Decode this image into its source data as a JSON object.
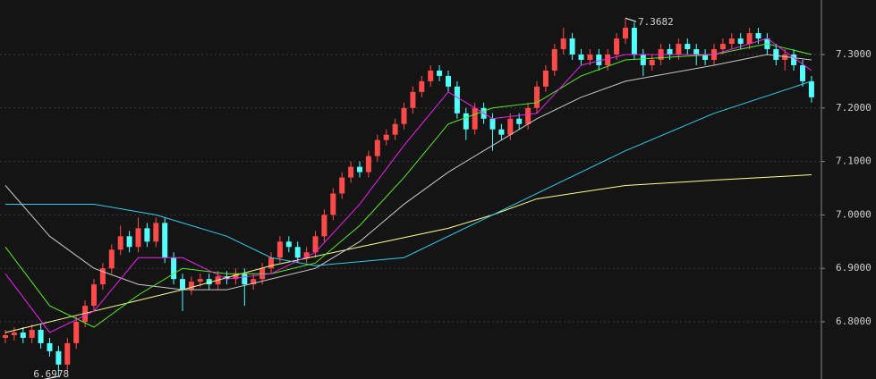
{
  "chart_data": {
    "type": "candlestick",
    "up_color": "#ff4a4a",
    "down_color": "#54ffff",
    "ylim": [
      6.693,
      7.402
    ],
    "yticks": [
      {
        "value": 6.8,
        "label": "6.8000"
      },
      {
        "value": 6.9,
        "label": "6.9000"
      },
      {
        "value": 7.0,
        "label": "7.0000"
      },
      {
        "value": 7.1,
        "label": "7.1000"
      },
      {
        "value": 7.2,
        "label": "7.2000"
      },
      {
        "value": 7.3,
        "label": "7.3000"
      }
    ],
    "grid": true,
    "candles": {
      "open": [
        6.77,
        6.775,
        6.78,
        6.77,
        6.785,
        6.76,
        6.745,
        6.72,
        6.76,
        6.8,
        6.83,
        6.87,
        6.9,
        6.935,
        6.96,
        6.94,
        6.975,
        6.95,
        6.985,
        6.92,
        6.88,
        6.86,
        6.875,
        6.88,
        6.87,
        6.885,
        6.88,
        6.89,
        6.87,
        6.88,
        6.9,
        6.92,
        6.95,
        6.94,
        6.92,
        6.93,
        6.96,
        7.0,
        7.04,
        7.07,
        7.09,
        7.08,
        7.11,
        7.14,
        7.15,
        7.17,
        7.2,
        7.23,
        7.25,
        7.27,
        7.26,
        7.24,
        7.19,
        7.16,
        7.2,
        7.18,
        7.16,
        7.15,
        7.18,
        7.17,
        7.2,
        7.24,
        7.27,
        7.31,
        7.33,
        7.3,
        7.29,
        7.3,
        7.28,
        7.3,
        7.33,
        7.35,
        7.3,
        7.28,
        7.29,
        7.31,
        7.3,
        7.32,
        7.31,
        7.3,
        7.29,
        7.31,
        7.32,
        7.33,
        7.32,
        7.34,
        7.33,
        7.31,
        7.29,
        7.3,
        7.28,
        7.25
      ],
      "high": [
        6.785,
        6.79,
        6.79,
        6.795,
        6.795,
        6.77,
        6.755,
        6.77,
        6.81,
        6.84,
        6.88,
        6.91,
        6.945,
        6.98,
        6.97,
        6.995,
        6.985,
        6.995,
        6.995,
        6.93,
        6.89,
        6.885,
        6.89,
        6.89,
        6.895,
        6.895,
        6.9,
        6.9,
        6.89,
        6.91,
        6.93,
        6.96,
        6.96,
        6.95,
        6.94,
        6.97,
        7.01,
        7.05,
        7.08,
        7.1,
        7.1,
        7.12,
        7.15,
        7.16,
        7.18,
        7.21,
        7.24,
        7.26,
        7.28,
        7.28,
        7.27,
        7.25,
        7.2,
        7.21,
        7.21,
        7.19,
        7.17,
        7.19,
        7.19,
        7.21,
        7.25,
        7.28,
        7.32,
        7.35,
        7.34,
        7.31,
        7.31,
        7.31,
        7.31,
        7.34,
        7.3682,
        7.36,
        7.31,
        7.3,
        7.32,
        7.32,
        7.33,
        7.33,
        7.32,
        7.31,
        7.32,
        7.33,
        7.34,
        7.34,
        7.35,
        7.35,
        7.34,
        7.32,
        7.31,
        7.31,
        7.29,
        7.26
      ],
      "low": [
        6.76,
        6.765,
        6.76,
        6.76,
        6.75,
        6.735,
        6.6978,
        6.71,
        6.75,
        6.79,
        6.82,
        6.86,
        6.89,
        6.925,
        6.93,
        6.93,
        6.94,
        6.94,
        6.91,
        6.87,
        6.82,
        6.85,
        6.865,
        6.86,
        6.86,
        6.87,
        6.87,
        6.83,
        6.86,
        6.87,
        6.89,
        6.91,
        6.93,
        6.91,
        6.91,
        6.92,
        6.95,
        6.99,
        7.03,
        7.06,
        7.07,
        7.07,
        7.1,
        7.13,
        7.14,
        7.16,
        7.19,
        7.22,
        7.24,
        7.25,
        7.23,
        7.18,
        7.14,
        7.15,
        7.17,
        7.12,
        7.14,
        7.14,
        7.16,
        7.16,
        7.19,
        7.23,
        7.26,
        7.3,
        7.29,
        7.28,
        7.28,
        7.27,
        7.27,
        7.29,
        7.32,
        7.29,
        7.26,
        7.27,
        7.28,
        7.29,
        7.29,
        7.3,
        7.28,
        7.28,
        7.28,
        7.3,
        7.31,
        7.31,
        7.31,
        7.32,
        7.3,
        7.28,
        7.27,
        7.27,
        7.24,
        7.21
      ],
      "close": [
        6.775,
        6.78,
        6.77,
        6.785,
        6.76,
        6.745,
        6.72,
        6.76,
        6.8,
        6.83,
        6.87,
        6.9,
        6.935,
        6.96,
        6.94,
        6.975,
        6.95,
        6.985,
        6.92,
        6.88,
        6.86,
        6.875,
        6.88,
        6.87,
        6.885,
        6.88,
        6.89,
        6.87,
        6.88,
        6.9,
        6.92,
        6.95,
        6.94,
        6.92,
        6.93,
        6.96,
        7.0,
        7.04,
        7.07,
        7.09,
        7.08,
        7.11,
        7.14,
        7.15,
        7.17,
        7.2,
        7.23,
        7.25,
        7.27,
        7.26,
        7.24,
        7.19,
        7.16,
        7.2,
        7.18,
        7.16,
        7.15,
        7.18,
        7.17,
        7.2,
        7.24,
        7.27,
        7.31,
        7.33,
        7.3,
        7.29,
        7.3,
        7.28,
        7.3,
        7.33,
        7.35,
        7.3,
        7.28,
        7.29,
        7.31,
        7.3,
        7.32,
        7.31,
        7.3,
        7.29,
        7.31,
        7.32,
        7.33,
        7.32,
        7.34,
        7.33,
        7.31,
        7.29,
        7.3,
        7.28,
        7.25,
        7.22
      ]
    },
    "lines": [
      {
        "color": "#ffff90",
        "x": [
          0,
          10,
          20,
          30,
          40,
          50,
          55,
          60,
          70,
          80,
          91
        ],
        "values": [
          6.78,
          6.82,
          6.86,
          6.905,
          6.94,
          6.975,
          7.0,
          7.03,
          7.055,
          7.065,
          7.075
        ]
      },
      {
        "color": "#33ccee",
        "x": [
          0,
          10,
          17,
          25,
          30,
          35,
          45,
          50,
          55,
          60,
          70,
          80,
          91
        ],
        "values": [
          7.02,
          7.02,
          7.0,
          6.96,
          6.92,
          6.905,
          6.92,
          6.96,
          7.0,
          7.04,
          7.12,
          7.19,
          7.25
        ]
      },
      {
        "color": "#c8c8c8",
        "x": [
          0,
          5,
          10,
          15,
          20,
          25,
          30,
          35,
          40,
          45,
          50,
          55,
          60,
          65,
          70,
          80,
          86,
          91
        ],
        "values": [
          7.055,
          6.96,
          6.9,
          6.87,
          6.86,
          6.86,
          6.88,
          6.9,
          6.95,
          7.02,
          7.08,
          7.13,
          7.18,
          7.22,
          7.25,
          7.28,
          7.3,
          7.29
        ]
      },
      {
        "color": "#55ee22",
        "x": [
          0,
          5,
          10,
          15,
          20,
          25,
          30,
          35,
          40,
          45,
          50,
          55,
          60,
          65,
          70,
          80,
          86,
          91
        ],
        "values": [
          6.94,
          6.83,
          6.79,
          6.85,
          6.9,
          6.89,
          6.89,
          6.91,
          6.98,
          7.07,
          7.17,
          7.2,
          7.21,
          7.26,
          7.29,
          7.3,
          7.32,
          7.3
        ]
      },
      {
        "color": "#ee22ee",
        "x": [
          0,
          5,
          10,
          15,
          20,
          25,
          30,
          35,
          40,
          45,
          50,
          55,
          60,
          65,
          70,
          80,
          86,
          91
        ],
        "values": [
          6.89,
          6.78,
          6.82,
          6.92,
          6.92,
          6.88,
          6.89,
          6.93,
          7.02,
          7.13,
          7.23,
          7.18,
          7.19,
          7.28,
          7.3,
          7.3,
          7.33,
          7.27
        ]
      }
    ]
  }
}
